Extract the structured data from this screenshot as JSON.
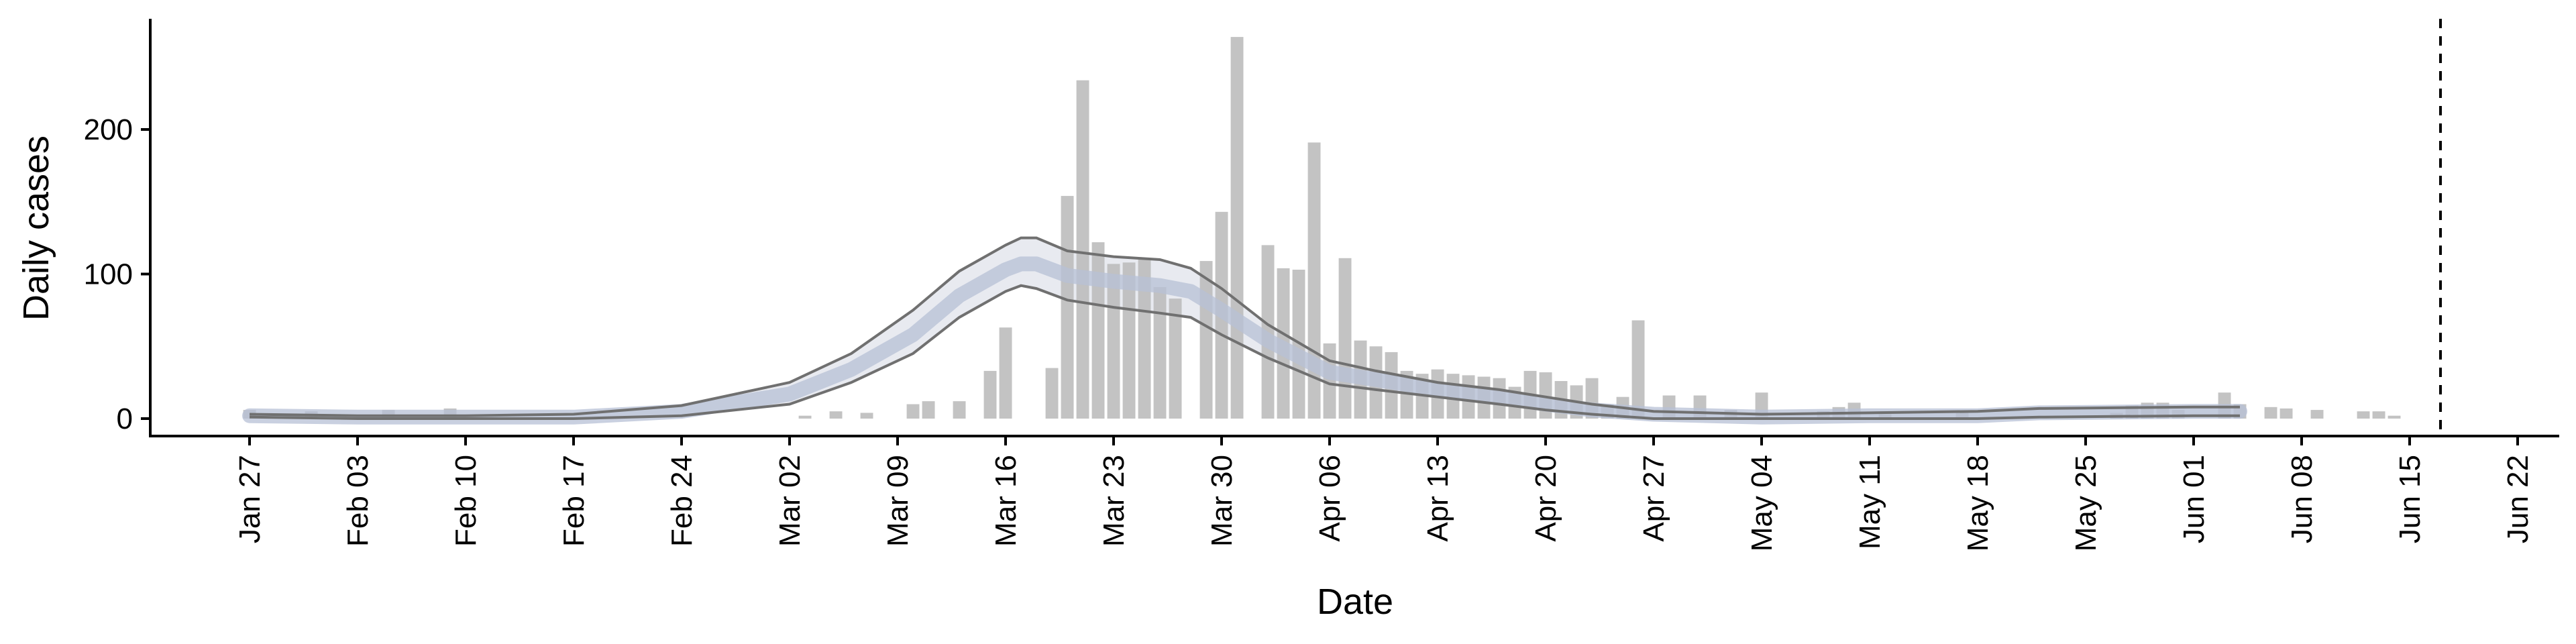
{
  "chart_data": {
    "type": "bar",
    "title": "",
    "xlabel": "Date",
    "ylabel": "Daily cases",
    "ylim": [
      -12,
      280
    ],
    "yticks": [
      0,
      100,
      200
    ],
    "ytick_labels": [
      "0",
      "100",
      "200"
    ],
    "x_start": "2020-01-24",
    "xticks": [
      "2020-01-27",
      "2020-02-03",
      "2020-02-10",
      "2020-02-17",
      "2020-02-24",
      "2020-03-02",
      "2020-03-09",
      "2020-03-16",
      "2020-03-23",
      "2020-03-30",
      "2020-04-06",
      "2020-04-13",
      "2020-04-20",
      "2020-04-27",
      "2020-05-04",
      "2020-05-11",
      "2020-05-18",
      "2020-05-25",
      "2020-06-01",
      "2020-06-08",
      "2020-06-15",
      "2020-06-22"
    ],
    "xtick_labels": [
      "Jan 27",
      "Feb 03",
      "Feb 10",
      "Feb 17",
      "Feb 24",
      "Mar 02",
      "Mar 09",
      "Mar 16",
      "Mar 23",
      "Mar 30",
      "Apr 06",
      "Apr 13",
      "Apr 20",
      "Apr 27",
      "May 04",
      "May 11",
      "May 18",
      "May 25",
      "Jun 01",
      "Jun 08",
      "Jun 15",
      "Jun 22"
    ],
    "reference_line": {
      "date": "2020-06-17",
      "style": "dashed"
    },
    "bars": {
      "dates": [
        "2020-01-27",
        "2020-01-31",
        "2020-02-05",
        "2020-02-09",
        "2020-03-03",
        "2020-03-05",
        "2020-03-07",
        "2020-03-10",
        "2020-03-11",
        "2020-03-13",
        "2020-03-15",
        "2020-03-16",
        "2020-03-19",
        "2020-03-20",
        "2020-03-21",
        "2020-03-22",
        "2020-03-23",
        "2020-03-24",
        "2020-03-25",
        "2020-03-26",
        "2020-03-27",
        "2020-03-29",
        "2020-03-30",
        "2020-03-31",
        "2020-04-02",
        "2020-04-03",
        "2020-04-04",
        "2020-04-05",
        "2020-04-06",
        "2020-04-07",
        "2020-04-08",
        "2020-04-09",
        "2020-04-10",
        "2020-04-11",
        "2020-04-12",
        "2020-04-13",
        "2020-04-14",
        "2020-04-15",
        "2020-04-16",
        "2020-04-17",
        "2020-04-18",
        "2020-04-19",
        "2020-04-20",
        "2020-04-21",
        "2020-04-22",
        "2020-04-23",
        "2020-04-24",
        "2020-04-25",
        "2020-04-26",
        "2020-04-28",
        "2020-04-30",
        "2020-05-02",
        "2020-05-04",
        "2020-05-08",
        "2020-05-09",
        "2020-05-10",
        "2020-05-12",
        "2020-05-17",
        "2020-05-27",
        "2020-05-28",
        "2020-05-29",
        "2020-05-30",
        "2020-05-31",
        "2020-06-03",
        "2020-06-04",
        "2020-06-06",
        "2020-06-07",
        "2020-06-09",
        "2020-06-12",
        "2020-06-13",
        "2020-06-14"
      ],
      "values": [
        6,
        5,
        6,
        7,
        2,
        5,
        4,
        10,
        12,
        12,
        33,
        63,
        35,
        154,
        234,
        122,
        107,
        108,
        110,
        91,
        83,
        109,
        143,
        264,
        120,
        104,
        103,
        191,
        52,
        111,
        54,
        50,
        46,
        33,
        31,
        34,
        31,
        30,
        29,
        28,
        22,
        33,
        32,
        26,
        23,
        28,
        10,
        15,
        68,
        16,
        16,
        6,
        18,
        5,
        8,
        11,
        3,
        5,
        4,
        9,
        11,
        11,
        6,
        18,
        10,
        8,
        7,
        6,
        5,
        5,
        2
      ]
    },
    "series": [
      {
        "name": "",
        "kind": "interval-upper",
        "dates": [
          "2020-01-27",
          "2020-02-03",
          "2020-02-10",
          "2020-02-17",
          "2020-02-24",
          "2020-03-02",
          "2020-03-06",
          "2020-03-10",
          "2020-03-13",
          "2020-03-16",
          "2020-03-17",
          "2020-03-18",
          "2020-03-20",
          "2020-03-23",
          "2020-03-26",
          "2020-03-28",
          "2020-03-30",
          "2020-04-02",
          "2020-04-06",
          "2020-04-09",
          "2020-04-13",
          "2020-04-17",
          "2020-04-20",
          "2020-04-23",
          "2020-04-27",
          "2020-05-04",
          "2020-05-11",
          "2020-05-18",
          "2020-05-22",
          "2020-06-01",
          "2020-06-04"
        ],
        "values": [
          3,
          2,
          2,
          3,
          9,
          25,
          45,
          75,
          102,
          120,
          125,
          125,
          116,
          112,
          110,
          104,
          90,
          65,
          40,
          33,
          25,
          20,
          15,
          10,
          5,
          3,
          4,
          5,
          7,
          8,
          8
        ]
      },
      {
        "name": "",
        "kind": "interval-lower",
        "dates": [
          "2020-01-27",
          "2020-02-03",
          "2020-02-10",
          "2020-02-17",
          "2020-02-24",
          "2020-03-02",
          "2020-03-06",
          "2020-03-10",
          "2020-03-13",
          "2020-03-16",
          "2020-03-17",
          "2020-03-18",
          "2020-03-20",
          "2020-03-23",
          "2020-03-26",
          "2020-03-28",
          "2020-03-30",
          "2020-04-02",
          "2020-04-06",
          "2020-04-09",
          "2020-04-13",
          "2020-04-17",
          "2020-04-20",
          "2020-04-23",
          "2020-04-27",
          "2020-05-04",
          "2020-05-11",
          "2020-05-18",
          "2020-05-22",
          "2020-06-01",
          "2020-06-04"
        ],
        "values": [
          1,
          0,
          0,
          0,
          2,
          10,
          25,
          45,
          70,
          88,
          92,
          90,
          82,
          77,
          73,
          70,
          58,
          42,
          24,
          20,
          15,
          10,
          6,
          3,
          0,
          0,
          0,
          0,
          1,
          2,
          2
        ]
      },
      {
        "name": "",
        "kind": "median",
        "dates": [
          "2020-01-27",
          "2020-02-03",
          "2020-02-10",
          "2020-02-17",
          "2020-02-24",
          "2020-03-02",
          "2020-03-06",
          "2020-03-10",
          "2020-03-13",
          "2020-03-16",
          "2020-03-17",
          "2020-03-18",
          "2020-03-20",
          "2020-03-23",
          "2020-03-26",
          "2020-03-28",
          "2020-03-30",
          "2020-04-02",
          "2020-04-06",
          "2020-04-09",
          "2020-04-13",
          "2020-04-17",
          "2020-04-20",
          "2020-04-23",
          "2020-04-27",
          "2020-05-04",
          "2020-05-11",
          "2020-05-18",
          "2020-05-22",
          "2020-06-01",
          "2020-06-04"
        ],
        "values": [
          2,
          1,
          1,
          1,
          5,
          17,
          34,
          58,
          85,
          103,
          107,
          107,
          99,
          95,
          92,
          88,
          75,
          54,
          32,
          27,
          20,
          15,
          10,
          6,
          3,
          1,
          2,
          2,
          4,
          5,
          5
        ]
      }
    ],
    "colors": {
      "bar": "#bdbdbd",
      "band": "#e8eaf0",
      "median": "#b7c0d6",
      "interval_line": "#707070",
      "axis": "#000000"
    }
  }
}
